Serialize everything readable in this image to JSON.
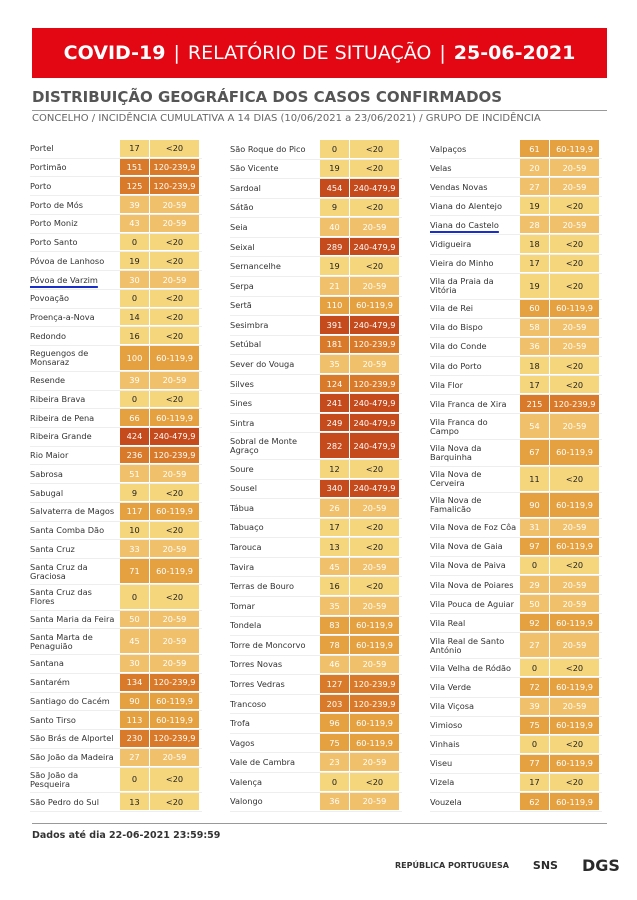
{
  "header": {
    "title_left": "COVID-19",
    "title_mid": "RELATÓRIO DE SITUAÇÃO",
    "title_right": "25-06-2021"
  },
  "heading": "DISTRIBUIÇÃO GEOGRÁFICA DOS CASOS CONFIRMADOS",
  "subheading": "CONCELHO / INCIDÊNCIA CUMULATIVA A 14 DIAS (10/06/2021 a 23/06/2021) / GRUPO DE INCIDÊNCIA",
  "group_colors": {
    "<20": {
      "bg": "#f6d67c",
      "fg": "#222222"
    },
    "20-59": {
      "bg": "#f1c06a",
      "fg": "#ffffff"
    },
    "60-119,9": {
      "bg": "#e5a03f",
      "fg": "#ffffff"
    },
    "120-239,9": {
      "bg": "#d97a2a",
      "fg": "#ffffff"
    },
    "240-479,9": {
      "bg": "#c54a1c",
      "fg": "#ffffff"
    }
  },
  "table": {
    "columns": [
      {
        "rows": [
          {
            "n": "Portel",
            "v": 17,
            "g": "<20"
          },
          {
            "n": "Portimão",
            "v": 151,
            "g": "120-239,9"
          },
          {
            "n": "Porto",
            "v": 125,
            "g": "120-239,9"
          },
          {
            "n": "Porto de Mós",
            "v": 39,
            "g": "20-59"
          },
          {
            "n": "Porto Moniz",
            "v": 43,
            "g": "20-59"
          },
          {
            "n": "Porto Santo",
            "v": 0,
            "g": "<20"
          },
          {
            "n": "Póvoa de Lanhoso",
            "v": 19,
            "g": "<20"
          },
          {
            "n": "Póvoa de Varzim",
            "v": 30,
            "g": "20-59",
            "u": true
          },
          {
            "n": "Povoação",
            "v": 0,
            "g": "<20"
          },
          {
            "n": "Proença-a-Nova",
            "v": 14,
            "g": "<20"
          },
          {
            "n": "Redondo",
            "v": 16,
            "g": "<20"
          },
          {
            "n": "Reguengos de Monsaraz",
            "v": 100,
            "g": "60-119,9"
          },
          {
            "n": "Resende",
            "v": 39,
            "g": "20-59"
          },
          {
            "n": "Ribeira Brava",
            "v": 0,
            "g": "<20"
          },
          {
            "n": "Ribeira de Pena",
            "v": 66,
            "g": "60-119,9"
          },
          {
            "n": "Ribeira Grande",
            "v": 424,
            "g": "240-479,9"
          },
          {
            "n": "Rio Maior",
            "v": 236,
            "g": "120-239,9"
          },
          {
            "n": "Sabrosa",
            "v": 51,
            "g": "20-59"
          },
          {
            "n": "Sabugal",
            "v": 9,
            "g": "<20"
          },
          {
            "n": "Salvaterra de Magos",
            "v": 117,
            "g": "60-119,9"
          },
          {
            "n": "Santa Comba Dão",
            "v": 10,
            "g": "<20"
          },
          {
            "n": "Santa Cruz",
            "v": 33,
            "g": "20-59"
          },
          {
            "n": "Santa Cruz da Graciosa",
            "v": 71,
            "g": "60-119,9"
          },
          {
            "n": "Santa Cruz das Flores",
            "v": 0,
            "g": "<20"
          },
          {
            "n": "Santa Maria da Feira",
            "v": 50,
            "g": "20-59"
          },
          {
            "n": "Santa Marta de Penaguião",
            "v": 45,
            "g": "20-59"
          },
          {
            "n": "Santana",
            "v": 30,
            "g": "20-59"
          },
          {
            "n": "Santarém",
            "v": 134,
            "g": "120-239,9"
          },
          {
            "n": "Santiago do Cacém",
            "v": 90,
            "g": "60-119,9"
          },
          {
            "n": "Santo Tirso",
            "v": 113,
            "g": "60-119,9"
          },
          {
            "n": "São Brás de Alportel",
            "v": 230,
            "g": "120-239,9"
          },
          {
            "n": "São João da Madeira",
            "v": 27,
            "g": "20-59"
          },
          {
            "n": "São João da Pesqueira",
            "v": 0,
            "g": "<20"
          },
          {
            "n": "São Pedro do Sul",
            "v": 13,
            "g": "<20"
          }
        ]
      },
      {
        "rows": [
          {
            "n": "São Roque do Pico",
            "v": 0,
            "g": "<20"
          },
          {
            "n": "São Vicente",
            "v": 19,
            "g": "<20"
          },
          {
            "n": "Sardoal",
            "v": 454,
            "g": "240-479,9"
          },
          {
            "n": "Sátão",
            "v": 9,
            "g": "<20"
          },
          {
            "n": "Seia",
            "v": 40,
            "g": "20-59"
          },
          {
            "n": "Seixal",
            "v": 289,
            "g": "240-479,9"
          },
          {
            "n": "Sernancelhe",
            "v": 19,
            "g": "<20"
          },
          {
            "n": "Serpa",
            "v": 21,
            "g": "20-59"
          },
          {
            "n": "Sertã",
            "v": 110,
            "g": "60-119,9"
          },
          {
            "n": "Sesimbra",
            "v": 391,
            "g": "240-479,9"
          },
          {
            "n": "Setúbal",
            "v": 181,
            "g": "120-239,9"
          },
          {
            "n": "Sever do Vouga",
            "v": 35,
            "g": "20-59"
          },
          {
            "n": "Silves",
            "v": 124,
            "g": "120-239,9"
          },
          {
            "n": "Sines",
            "v": 241,
            "g": "240-479,9"
          },
          {
            "n": "Sintra",
            "v": 249,
            "g": "240-479,9"
          },
          {
            "n": "Sobral de Monte Agraço",
            "v": 282,
            "g": "240-479,9"
          },
          {
            "n": "Soure",
            "v": 12,
            "g": "<20"
          },
          {
            "n": "Sousel",
            "v": 340,
            "g": "240-479,9"
          },
          {
            "n": "Tábua",
            "v": 26,
            "g": "20-59"
          },
          {
            "n": "Tabuaço",
            "v": 17,
            "g": "<20"
          },
          {
            "n": "Tarouca",
            "v": 13,
            "g": "<20"
          },
          {
            "n": "Tavira",
            "v": 45,
            "g": "20-59"
          },
          {
            "n": "Terras de Bouro",
            "v": 16,
            "g": "<20"
          },
          {
            "n": "Tomar",
            "v": 35,
            "g": "20-59"
          },
          {
            "n": "Tondela",
            "v": 83,
            "g": "60-119,9"
          },
          {
            "n": "Torre de Moncorvo",
            "v": 78,
            "g": "60-119,9"
          },
          {
            "n": "Torres Novas",
            "v": 46,
            "g": "20-59"
          },
          {
            "n": "Torres Vedras",
            "v": 127,
            "g": "120-239,9"
          },
          {
            "n": "Trancoso",
            "v": 203,
            "g": "120-239,9"
          },
          {
            "n": "Trofa",
            "v": 96,
            "g": "60-119,9"
          },
          {
            "n": "Vagos",
            "v": 75,
            "g": "60-119,9"
          },
          {
            "n": "Vale de Cambra",
            "v": 23,
            "g": "20-59"
          },
          {
            "n": "Valença",
            "v": 0,
            "g": "<20"
          },
          {
            "n": "Valongo",
            "v": 36,
            "g": "20-59"
          }
        ]
      },
      {
        "rows": [
          {
            "n": "Valpaços",
            "v": 61,
            "g": "60-119,9"
          },
          {
            "n": "Velas",
            "v": 20,
            "g": "20-59"
          },
          {
            "n": "Vendas Novas",
            "v": 27,
            "g": "20-59"
          },
          {
            "n": "Viana do Alentejo",
            "v": 19,
            "g": "<20"
          },
          {
            "n": "Viana do Castelo",
            "v": 28,
            "g": "20-59",
            "u": true
          },
          {
            "n": "Vidigueira",
            "v": 18,
            "g": "<20"
          },
          {
            "n": "Vieira do Minho",
            "v": 17,
            "g": "<20"
          },
          {
            "n": "Vila da Praia da Vitória",
            "v": 19,
            "g": "<20"
          },
          {
            "n": "Vila de Rei",
            "v": 60,
            "g": "60-119,9"
          },
          {
            "n": "Vila do Bispo",
            "v": 58,
            "g": "20-59"
          },
          {
            "n": "Vila do Conde",
            "v": 36,
            "g": "20-59"
          },
          {
            "n": "Vila do Porto",
            "v": 18,
            "g": "<20"
          },
          {
            "n": "Vila Flor",
            "v": 17,
            "g": "<20"
          },
          {
            "n": "Vila Franca de Xira",
            "v": 215,
            "g": "120-239,9"
          },
          {
            "n": "Vila Franca do Campo",
            "v": 54,
            "g": "20-59"
          },
          {
            "n": "Vila Nova da Barquinha",
            "v": 67,
            "g": "60-119,9"
          },
          {
            "n": "Vila Nova de Cerveira",
            "v": 11,
            "g": "<20"
          },
          {
            "n": "Vila Nova de Famalicão",
            "v": 90,
            "g": "60-119,9"
          },
          {
            "n": "Vila Nova de Foz Côa",
            "v": 31,
            "g": "20-59"
          },
          {
            "n": "Vila Nova de Gaia",
            "v": 97,
            "g": "60-119,9"
          },
          {
            "n": "Vila Nova de Paiva",
            "v": 0,
            "g": "<20"
          },
          {
            "n": "Vila Nova de Poiares",
            "v": 29,
            "g": "20-59"
          },
          {
            "n": "Vila Pouca de Aguiar",
            "v": 50,
            "g": "20-59"
          },
          {
            "n": "Vila Real",
            "v": 92,
            "g": "60-119,9"
          },
          {
            "n": "Vila Real de Santo António",
            "v": 27,
            "g": "20-59"
          },
          {
            "n": "Vila Velha de Ródão",
            "v": 0,
            "g": "<20"
          },
          {
            "n": "Vila Verde",
            "v": 72,
            "g": "60-119,9"
          },
          {
            "n": "Vila Viçosa",
            "v": 39,
            "g": "20-59"
          },
          {
            "n": "Vimioso",
            "v": 75,
            "g": "60-119,9"
          },
          {
            "n": "Vinhais",
            "v": 0,
            "g": "<20"
          },
          {
            "n": "Viseu",
            "v": 77,
            "g": "60-119,9"
          },
          {
            "n": "Vizela",
            "v": 17,
            "g": "<20"
          },
          {
            "n": "Vouzela",
            "v": 62,
            "g": "60-119,9"
          }
        ]
      }
    ]
  },
  "footer": {
    "note": "Dados até dia 22-06-2021 23:59:59",
    "logos": [
      "REPÚBLICA PORTUGUESA",
      "SNS",
      "DGS"
    ]
  }
}
